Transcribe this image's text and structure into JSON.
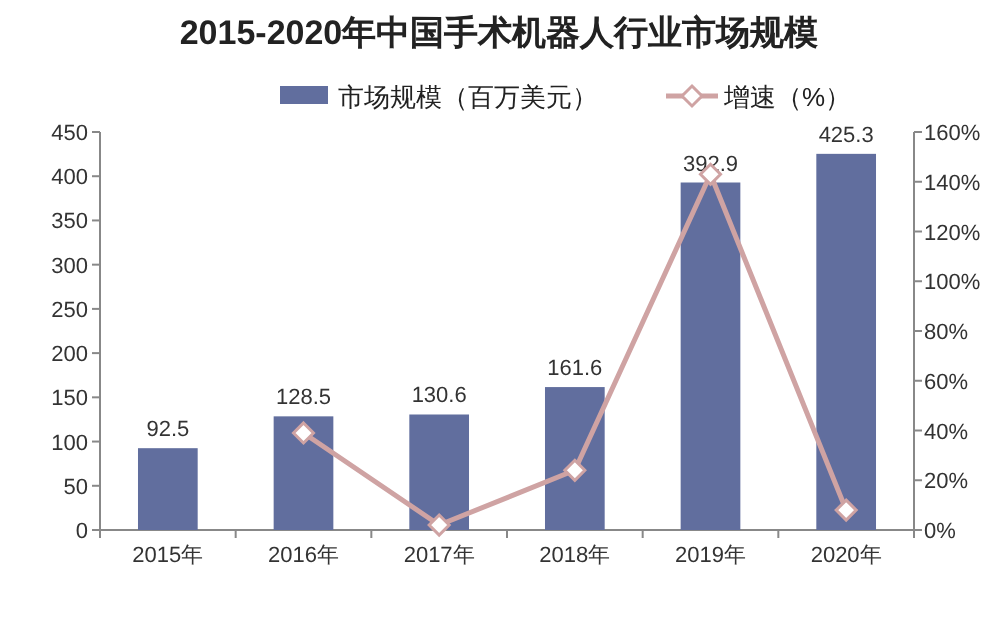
{
  "chart_data": {
    "type": "bar",
    "title": "2015-2020年中国手术机器人行业市场规模",
    "categories": [
      "2015年",
      "2016年",
      "2017年",
      "2018年",
      "2019年",
      "2020年"
    ],
    "series": [
      {
        "name": "市场规模（百万美元）",
        "color": "#616e9e",
        "values": [
          92.5,
          128.5,
          130.6,
          161.6,
          392.9,
          425.3
        ],
        "value_labels": [
          "92.5",
          "128.5",
          "130.6",
          "161.6",
          "392.9",
          "425.3"
        ]
      },
      {
        "name": "增速（%）",
        "type": "line",
        "axis": "y2",
        "color": "#cfa3a3",
        "values": [
          null,
          39,
          2,
          24,
          143,
          8
        ]
      }
    ],
    "marker": "diamond",
    "line_style": "solid",
    "ylim": [
      0,
      450
    ],
    "yticks": [
      0,
      50,
      100,
      150,
      200,
      250,
      300,
      350,
      400,
      450
    ],
    "y2lim": [
      0,
      160
    ],
    "y2ticks": [
      {
        "value": 0,
        "label": "0%"
      },
      {
        "value": 20,
        "label": "20%"
      },
      {
        "value": 40,
        "label": "40%"
      },
      {
        "value": 60,
        "label": "60%"
      },
      {
        "value": 80,
        "label": "80%"
      },
      {
        "value": 100,
        "label": "100%"
      },
      {
        "value": 120,
        "label": "120%"
      },
      {
        "value": 140,
        "label": "140%"
      },
      {
        "value": 160,
        "label": "160%"
      }
    ],
    "legend": "top",
    "grid": false
  }
}
